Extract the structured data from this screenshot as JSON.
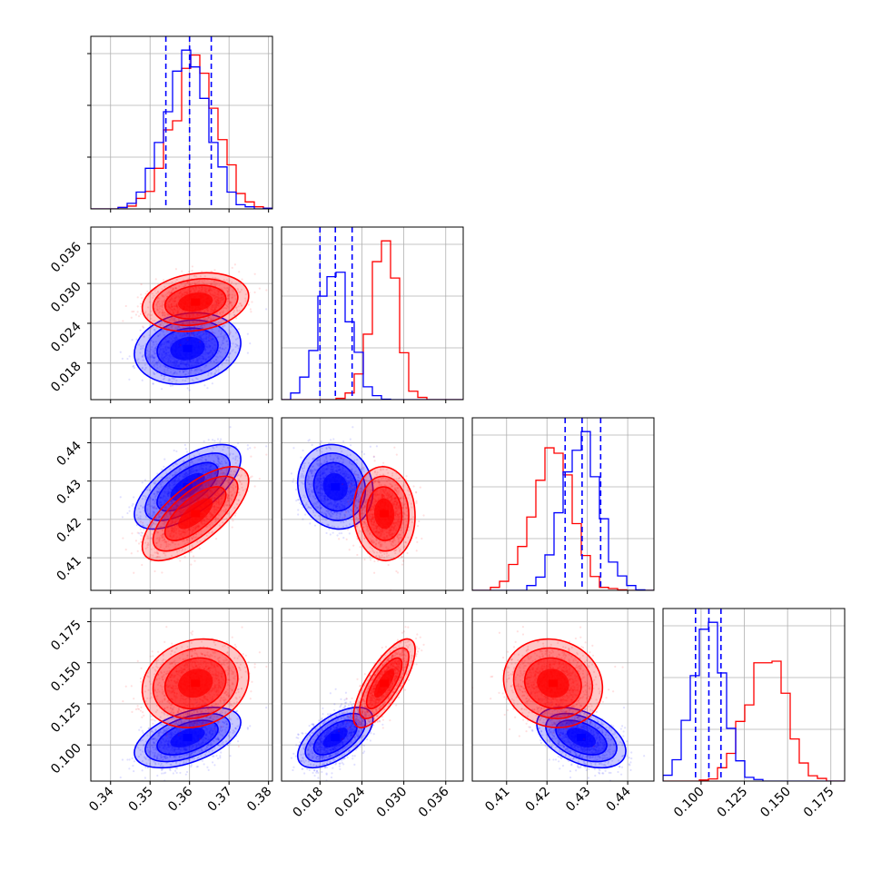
{
  "chart_data": {
    "type": "corner",
    "grid": true,
    "colors": {
      "series_a": "#0000ff",
      "series_b": "#ff0000",
      "frame": "#000000",
      "grid": "#b0b0b0"
    },
    "parameters": [
      {
        "ticks": [
          0.34,
          0.35,
          0.36,
          0.37,
          0.38
        ],
        "tick_labels": [
          "0.34",
          "0.35",
          "0.36",
          "0.37",
          "0.38"
        ],
        "range": [
          0.335,
          0.381
        ]
      },
      {
        "ticks": [
          0.018,
          0.024,
          0.03,
          0.036
        ],
        "tick_labels": [
          "0.018",
          "0.024",
          "0.030",
          "0.036"
        ],
        "range": [
          0.0125,
          0.0385
        ]
      },
      {
        "ticks": [
          0.41,
          0.42,
          0.43,
          0.44
        ],
        "tick_labels": [
          "0.41",
          "0.42",
          "0.43",
          "0.44"
        ],
        "range": [
          0.4015,
          0.4465
        ]
      },
      {
        "ticks": [
          0.1,
          0.125,
          0.15,
          0.175
        ],
        "tick_labels": [
          "0.100",
          "0.125",
          "0.150",
          "0.175"
        ],
        "range": [
          0.078,
          0.183
        ]
      }
    ],
    "series": [
      {
        "color": "#0000ff",
        "means": [
          0.3595,
          0.0202,
          0.4285,
          0.1045
        ],
        "sds": [
          0.0055,
          0.0022,
          0.0045,
          0.0075
        ],
        "correlations": {
          "1-0": 0.15,
          "2-0": 0.65,
          "2-1": -0.1,
          "3-0": 0.5,
          "3-1": 0.6,
          "3-2": -0.45
        },
        "quantiles": [
          [
            0.354,
            0.36,
            0.3655
          ],
          [
            0.018,
            0.0202,
            0.0226
          ],
          [
            0.4245,
            0.4287,
            0.4333
          ],
          [
            0.0968,
            0.1045,
            0.1115
          ]
        ]
      },
      {
        "color": "#ff0000",
        "means": [
          0.3615,
          0.0272,
          0.4215,
          0.1375
        ],
        "sds": [
          0.0055,
          0.0018,
          0.005,
          0.011
        ],
        "correlations": {
          "1-0": 0.2,
          "2-0": 0.7,
          "2-1": -0.05,
          "3-0": 0.15,
          "3-1": 0.75,
          "3-2": -0.1
        },
        "quantiles": []
      }
    ]
  }
}
